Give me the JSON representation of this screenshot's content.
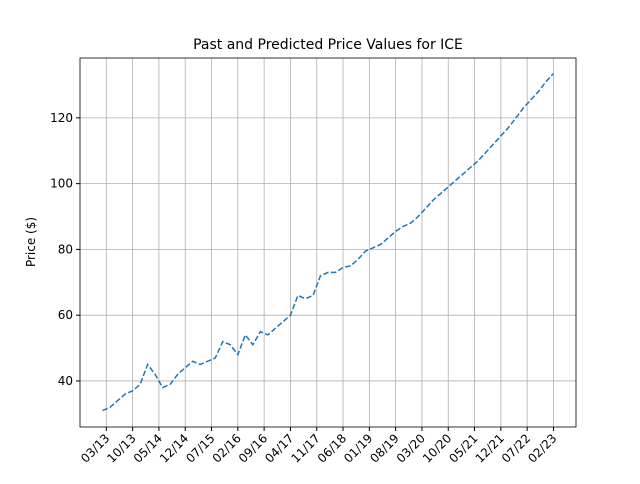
{
  "chart_data": {
    "type": "line",
    "title": "Past and Predicted Price Values for ICE",
    "y_label": "Price ($)",
    "x": [
      "02/13",
      "04/13",
      "06/13",
      "08/13",
      "10/13",
      "12/13",
      "02/14",
      "04/14",
      "06/14",
      "08/14",
      "10/14",
      "12/14",
      "02/15",
      "04/15",
      "06/15",
      "08/15",
      "10/15",
      "12/15",
      "02/16",
      "04/16",
      "06/16",
      "08/16",
      "10/16",
      "12/16",
      "02/17",
      "04/17",
      "06/17",
      "08/17",
      "10/17",
      "12/17",
      "02/18",
      "04/18",
      "06/18",
      "08/18",
      "10/18",
      "12/18",
      "02/19",
      "04/19",
      "06/19",
      "08/19",
      "10/19",
      "12/19",
      "02/20",
      "04/20",
      "06/20",
      "08/20",
      "10/20",
      "12/20",
      "02/21",
      "04/21",
      "06/21",
      "08/21",
      "10/21",
      "12/21",
      "02/22",
      "04/22",
      "06/22",
      "08/22",
      "10/22",
      "12/22",
      "02/23"
    ],
    "series": [
      {
        "color": "#1f77b4",
        "values": [
          31,
          32,
          34,
          36,
          37,
          39,
          45,
          42,
          38,
          39,
          42,
          44,
          46,
          45,
          46,
          47,
          52,
          51,
          48,
          54,
          51,
          55,
          54,
          56,
          58,
          60,
          66,
          65,
          66,
          72,
          73,
          73,
          74.5,
          75,
          77,
          79.5,
          80.5,
          81.5,
          83.5,
          85.5,
          87,
          88,
          90,
          92.5,
          95,
          97,
          99,
          101,
          103,
          105,
          107,
          109.5,
          112,
          114.5,
          117,
          120,
          123,
          125.5,
          128,
          131,
          133.5
        ]
      }
    ],
    "xlim": [
      "08/12",
      "08/23"
    ],
    "xticks": [
      "03/13",
      "10/13",
      "05/14",
      "12/14",
      "07/15",
      "02/16",
      "09/16",
      "04/17",
      "11/17",
      "06/18",
      "01/19",
      "08/19",
      "03/20",
      "10/20",
      "05/21",
      "12/21",
      "07/22",
      "02/23"
    ],
    "ylim": [
      26,
      138.2
    ],
    "yticks": [
      40,
      60,
      80,
      100,
      120
    ],
    "grid": true
  }
}
